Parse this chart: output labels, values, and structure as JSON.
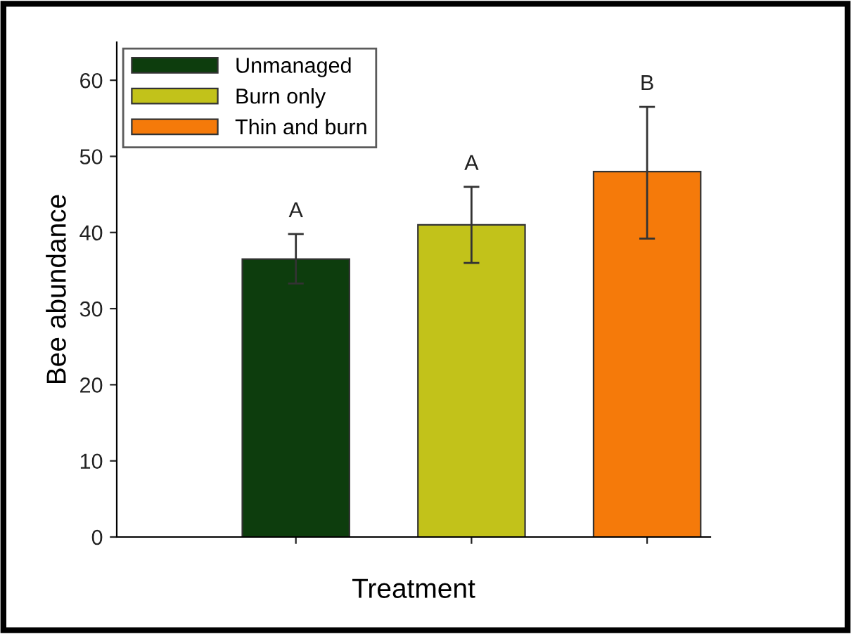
{
  "chart_data": {
    "type": "bar",
    "xlabel": "Treatment",
    "ylabel": "Bee abundance",
    "categories": [
      null,
      null,
      null
    ],
    "series": [
      {
        "name": "Unmanaged",
        "color": "#0d3d0d",
        "values": [
          36.5,
          null,
          null
        ],
        "errors": [
          [
            33.3,
            39.8
          ],
          null,
          null
        ]
      },
      {
        "name": "Burn only",
        "color": "#c2c21a",
        "values": [
          null,
          41,
          null
        ],
        "errors": [
          null,
          [
            36,
            46
          ],
          null
        ]
      },
      {
        "name": "Thin and burn",
        "color": "#f57a0a",
        "values": [
          null,
          null,
          48
        ],
        "errors": [
          null,
          null,
          [
            39.2,
            56.5
          ]
        ]
      }
    ],
    "annotations": [
      "A",
      "A",
      "B"
    ],
    "ylim": [
      0,
      65
    ],
    "yticks": [
      0,
      10,
      20,
      30,
      40,
      50,
      60
    ],
    "grid": false,
    "legend": "top left"
  }
}
